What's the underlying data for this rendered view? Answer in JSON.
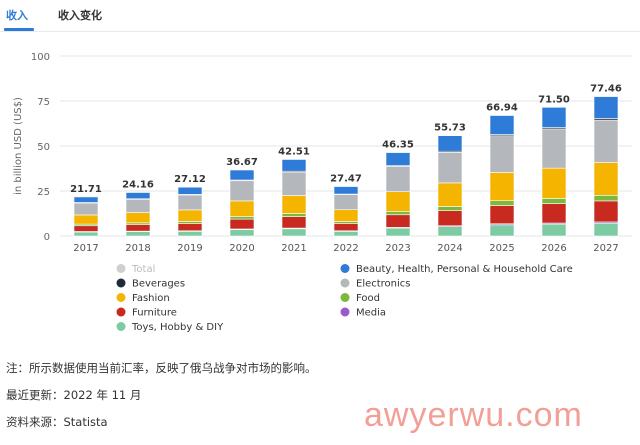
{
  "tabs": [
    {
      "label": "收入",
      "active": true
    },
    {
      "label": "收入变化",
      "active": false
    }
  ],
  "chart_data": {
    "type": "bar",
    "stacked": true,
    "ylabel": "in billion USD (US$)",
    "ylim": [
      0,
      100
    ],
    "yticks": [
      0,
      25,
      50,
      75,
      100
    ],
    "grid": true,
    "legend_position": "bottom",
    "categories": [
      "2017",
      "2018",
      "2019",
      "2020",
      "2021",
      "2022",
      "2023",
      "2024",
      "2025",
      "2026",
      "2027"
    ],
    "totals": [
      "21.71",
      "24.16",
      "27.12",
      "36.67",
      "42.51",
      "27.47",
      "46.35",
      "55.73",
      "66.94",
      "71.50",
      "77.46"
    ],
    "series": [
      {
        "name": "Toys, Hobby & DIY",
        "color": "#7ccba2",
        "values": [
          2.2,
          2.4,
          2.6,
          3.5,
          4.0,
          2.6,
          4.4,
          5.2,
          6.2,
          6.6,
          7.1
        ]
      },
      {
        "name": "Media",
        "color": "#9b59d0",
        "values": [
          0.3,
          0.3,
          0.3,
          0.4,
          0.4,
          0.3,
          0.4,
          0.5,
          0.6,
          0.6,
          0.7
        ]
      },
      {
        "name": "Furniture",
        "color": "#c92a1f",
        "values": [
          3.2,
          3.6,
          4.1,
          5.5,
          6.4,
          4.1,
          7.0,
          8.4,
          10.1,
          10.8,
          11.7
        ]
      },
      {
        "name": "Food",
        "color": "#7cb83a",
        "values": [
          0.9,
          1.0,
          1.1,
          1.5,
          1.7,
          1.1,
          1.9,
          2.3,
          2.7,
          2.9,
          3.1
        ]
      },
      {
        "name": "Fashion",
        "color": "#f5b400",
        "values": [
          5.1,
          5.7,
          6.4,
          8.6,
          10.0,
          6.5,
          10.9,
          13.1,
          15.7,
          16.8,
          18.2
        ]
      },
      {
        "name": "Electronics",
        "color": "#b4b7bc",
        "values": [
          6.6,
          7.4,
          8.3,
          11.2,
          13.0,
          8.4,
          14.1,
          17.0,
          20.4,
          21.8,
          23.6
        ]
      },
      {
        "name": "Beverages",
        "color": "#1c2a3a",
        "values": [
          0.3,
          0.3,
          0.3,
          0.4,
          0.5,
          0.3,
          0.5,
          0.6,
          0.7,
          0.8,
          0.9
        ]
      },
      {
        "name": "Beauty, Health, Personal & Household Care",
        "color": "#2f7bd8",
        "values": [
          3.11,
          3.46,
          4.02,
          5.57,
          6.51,
          4.17,
          7.15,
          8.63,
          10.54,
          11.2,
          12.16
        ]
      }
    ],
    "legend": [
      {
        "label": "Total",
        "color": "#cfcfcf",
        "muted": true
      },
      {
        "label": "Beauty, Health, Personal & Household Care",
        "color": "#2f7bd8",
        "muted": false
      },
      {
        "label": "Beverages",
        "color": "#1c2a3a",
        "muted": false
      },
      {
        "label": "Electronics",
        "color": "#b4b7bc",
        "muted": false
      },
      {
        "label": "Fashion",
        "color": "#f5b400",
        "muted": false
      },
      {
        "label": "Food",
        "color": "#7cb83a",
        "muted": false
      },
      {
        "label": "Furniture",
        "color": "#c92a1f",
        "muted": false
      },
      {
        "label": "Media",
        "color": "#9b59d0",
        "muted": false
      },
      {
        "label": "Toys, Hobby & DIY",
        "color": "#7ccba2",
        "muted": false
      }
    ]
  },
  "notes": {
    "note": "注：所示数据使用当前汇率，反映了俄乌战争对市场的影响。",
    "updated": "最近更新：2022 年 11 月",
    "source": "资料来源：Statista"
  },
  "watermark": "awyerwu.com"
}
